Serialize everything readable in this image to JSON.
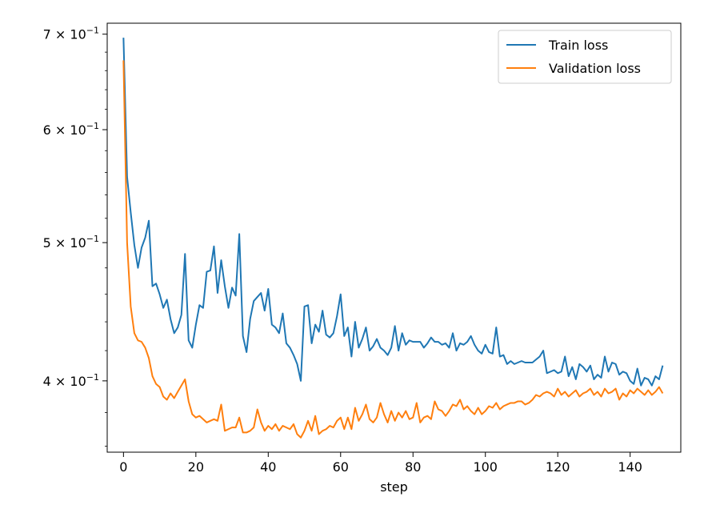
{
  "chart_data": {
    "type": "line",
    "xlabel": "step",
    "ylabel": "",
    "yscale": "log",
    "xlim": [
      -4.5,
      154
    ],
    "ylim": [
      0.3565,
      0.7125
    ],
    "xticks": [
      {
        "value": 0,
        "label": "0"
      },
      {
        "value": 20,
        "label": "20"
      },
      {
        "value": 40,
        "label": "40"
      },
      {
        "value": 60,
        "label": "60"
      },
      {
        "value": 80,
        "label": "80"
      },
      {
        "value": 100,
        "label": "100"
      },
      {
        "value": 120,
        "label": "120"
      },
      {
        "value": 140,
        "label": "140"
      }
    ],
    "yticks": [
      {
        "value": 0.4,
        "base": "4 × 10",
        "exp": "−1"
      },
      {
        "value": 0.5,
        "base": "5 × 10",
        "exp": "−1"
      },
      {
        "value": 0.6,
        "base": "6 × 10",
        "exp": "−1"
      },
      {
        "value": 0.7,
        "base": "7 × 10",
        "exp": "−1"
      }
    ],
    "legend_position": "top-right",
    "grid": false,
    "series": [
      {
        "name": "Train loss",
        "color": "#1f77b4",
        "values": [
          0.696,
          0.556,
          0.525,
          0.498,
          0.48,
          0.496,
          0.504,
          0.518,
          0.466,
          0.468,
          0.46,
          0.45,
          0.456,
          0.442,
          0.432,
          0.436,
          0.445,
          0.491,
          0.427,
          0.422,
          0.438,
          0.452,
          0.45,
          0.477,
          0.478,
          0.497,
          0.461,
          0.486,
          0.466,
          0.45,
          0.465,
          0.459,
          0.507,
          0.43,
          0.419,
          0.442,
          0.455,
          0.458,
          0.461,
          0.448,
          0.464,
          0.438,
          0.436,
          0.432,
          0.446,
          0.425,
          0.422,
          0.417,
          0.411,
          0.4,
          0.451,
          0.452,
          0.425,
          0.438,
          0.433,
          0.448,
          0.431,
          0.429,
          0.432,
          0.444,
          0.46,
          0.43,
          0.436,
          0.416,
          0.44,
          0.422,
          0.428,
          0.436,
          0.42,
          0.423,
          0.428,
          0.422,
          0.42,
          0.417,
          0.422,
          0.437,
          0.42,
          0.432,
          0.424,
          0.427,
          0.426,
          0.426,
          0.426,
          0.422,
          0.425,
          0.429,
          0.426,
          0.426,
          0.424,
          0.425,
          0.422,
          0.432,
          0.42,
          0.425,
          0.424,
          0.426,
          0.43,
          0.424,
          0.42,
          0.418,
          0.424,
          0.419,
          0.418,
          0.436,
          0.416,
          0.417,
          0.411,
          0.413,
          0.411,
          0.412,
          0.413,
          0.412,
          0.412,
          0.412,
          0.414,
          0.416,
          0.42,
          0.405,
          0.406,
          0.407,
          0.405,
          0.406,
          0.416,
          0.403,
          0.409,
          0.401,
          0.411,
          0.409,
          0.406,
          0.41,
          0.401,
          0.404,
          0.402,
          0.416,
          0.406,
          0.412,
          0.411,
          0.404,
          0.406,
          0.405,
          0.4,
          0.398,
          0.408,
          0.397,
          0.402,
          0.401,
          0.397,
          0.403,
          0.401,
          0.41
        ]
      },
      {
        "name": "Validation loss",
        "color": "#ff7f0e",
        "values": [
          0.671,
          0.5,
          0.451,
          0.432,
          0.427,
          0.426,
          0.422,
          0.415,
          0.403,
          0.398,
          0.396,
          0.39,
          0.388,
          0.392,
          0.389,
          0.393,
          0.397,
          0.401,
          0.387,
          0.379,
          0.377,
          0.378,
          0.376,
          0.374,
          0.375,
          0.376,
          0.375,
          0.385,
          0.369,
          0.37,
          0.371,
          0.371,
          0.377,
          0.368,
          0.368,
          0.369,
          0.371,
          0.382,
          0.374,
          0.369,
          0.372,
          0.37,
          0.373,
          0.369,
          0.372,
          0.371,
          0.37,
          0.373,
          0.367,
          0.365,
          0.369,
          0.375,
          0.369,
          0.378,
          0.367,
          0.369,
          0.37,
          0.372,
          0.371,
          0.375,
          0.377,
          0.37,
          0.377,
          0.37,
          0.383,
          0.375,
          0.379,
          0.385,
          0.376,
          0.374,
          0.377,
          0.386,
          0.379,
          0.374,
          0.381,
          0.375,
          0.38,
          0.377,
          0.381,
          0.376,
          0.377,
          0.386,
          0.374,
          0.377,
          0.378,
          0.376,
          0.387,
          0.382,
          0.381,
          0.378,
          0.381,
          0.385,
          0.384,
          0.388,
          0.382,
          0.384,
          0.381,
          0.379,
          0.383,
          0.379,
          0.381,
          0.384,
          0.383,
          0.386,
          0.382,
          0.384,
          0.385,
          0.386,
          0.386,
          0.387,
          0.387,
          0.385,
          0.386,
          0.388,
          0.391,
          0.39,
          0.392,
          0.393,
          0.392,
          0.39,
          0.395,
          0.391,
          0.393,
          0.39,
          0.392,
          0.394,
          0.39,
          0.392,
          0.393,
          0.395,
          0.391,
          0.393,
          0.39,
          0.395,
          0.392,
          0.393,
          0.395,
          0.388,
          0.392,
          0.39,
          0.394,
          0.392,
          0.395,
          0.393,
          0.391,
          0.394,
          0.391,
          0.393,
          0.396,
          0.392
        ]
      }
    ]
  }
}
